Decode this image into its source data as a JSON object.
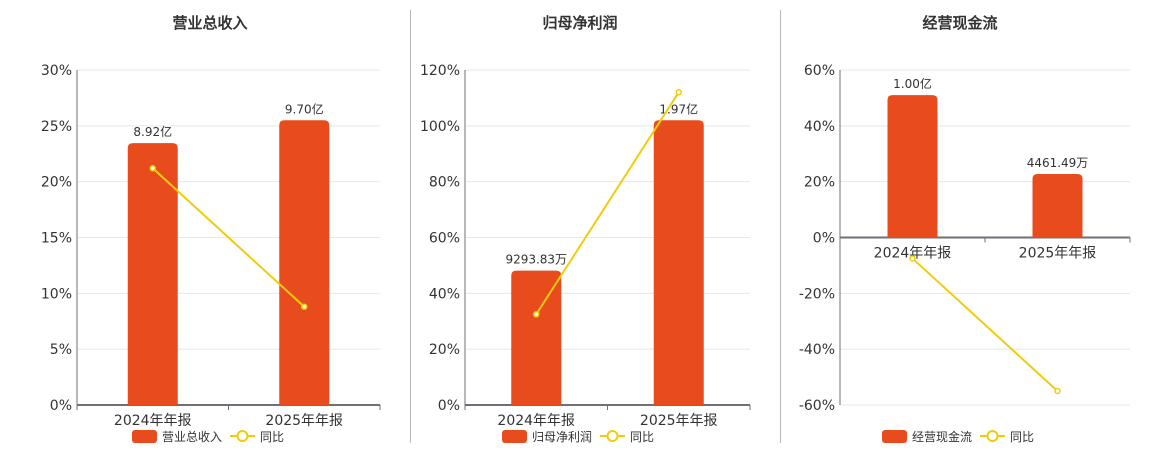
{
  "colors": {
    "bar": "#e84c1c",
    "line": "#f2cc0c",
    "grid": "#e3e8f2",
    "axis": "#6e7079",
    "text": "#333333"
  },
  "chart_data": [
    {
      "type": "bar+line",
      "title": "营业总收入",
      "categories": [
        "2024年年报",
        "2025年年报"
      ],
      "y_ticks": [
        "0%",
        "5%",
        "10%",
        "15%",
        "20%",
        "25%",
        "30%"
      ],
      "ylim": [
        0,
        30
      ],
      "bar_series": {
        "name": "营业总收入",
        "values": [
          8.92,
          9.7
        ],
        "unit": "亿",
        "labels": [
          "8.92亿",
          "9.70亿"
        ]
      },
      "line_series": {
        "name": "同比",
        "values": [
          21.2,
          8.8
        ],
        "unit": "%"
      },
      "grid": true,
      "legend": "bottom"
    },
    {
      "type": "bar+line",
      "title": "归母净利润",
      "categories": [
        "2024年年报",
        "2025年年报"
      ],
      "y_ticks": [
        "0%",
        "20%",
        "40%",
        "60%",
        "80%",
        "100%",
        "120%"
      ],
      "ylim": [
        0,
        120
      ],
      "bar_series": {
        "name": "归母净利润",
        "values": [
          0.929383,
          1.97
        ],
        "unit": "亿",
        "labels": [
          "9293.83万",
          "1.97亿"
        ]
      },
      "line_series": {
        "name": "同比",
        "values": [
          32.5,
          112
        ],
        "unit": "%"
      },
      "grid": true,
      "legend": "bottom"
    },
    {
      "type": "bar+line",
      "title": "经营现金流",
      "categories": [
        "2024年年报",
        "2025年年报"
      ],
      "y_ticks": [
        "-60%",
        "-40%",
        "-20%",
        "0%",
        "20%",
        "40%",
        "60%"
      ],
      "ylim": [
        -60,
        60
      ],
      "bar_series": {
        "name": "经营现金流",
        "values": [
          1.0,
          0.446149
        ],
        "unit": "亿",
        "labels": [
          "1.00亿",
          "4461.49万"
        ]
      },
      "line_series": {
        "name": "同比",
        "values": [
          -7.5,
          -55
        ],
        "unit": "%"
      },
      "grid": true,
      "legend": "bottom"
    }
  ]
}
